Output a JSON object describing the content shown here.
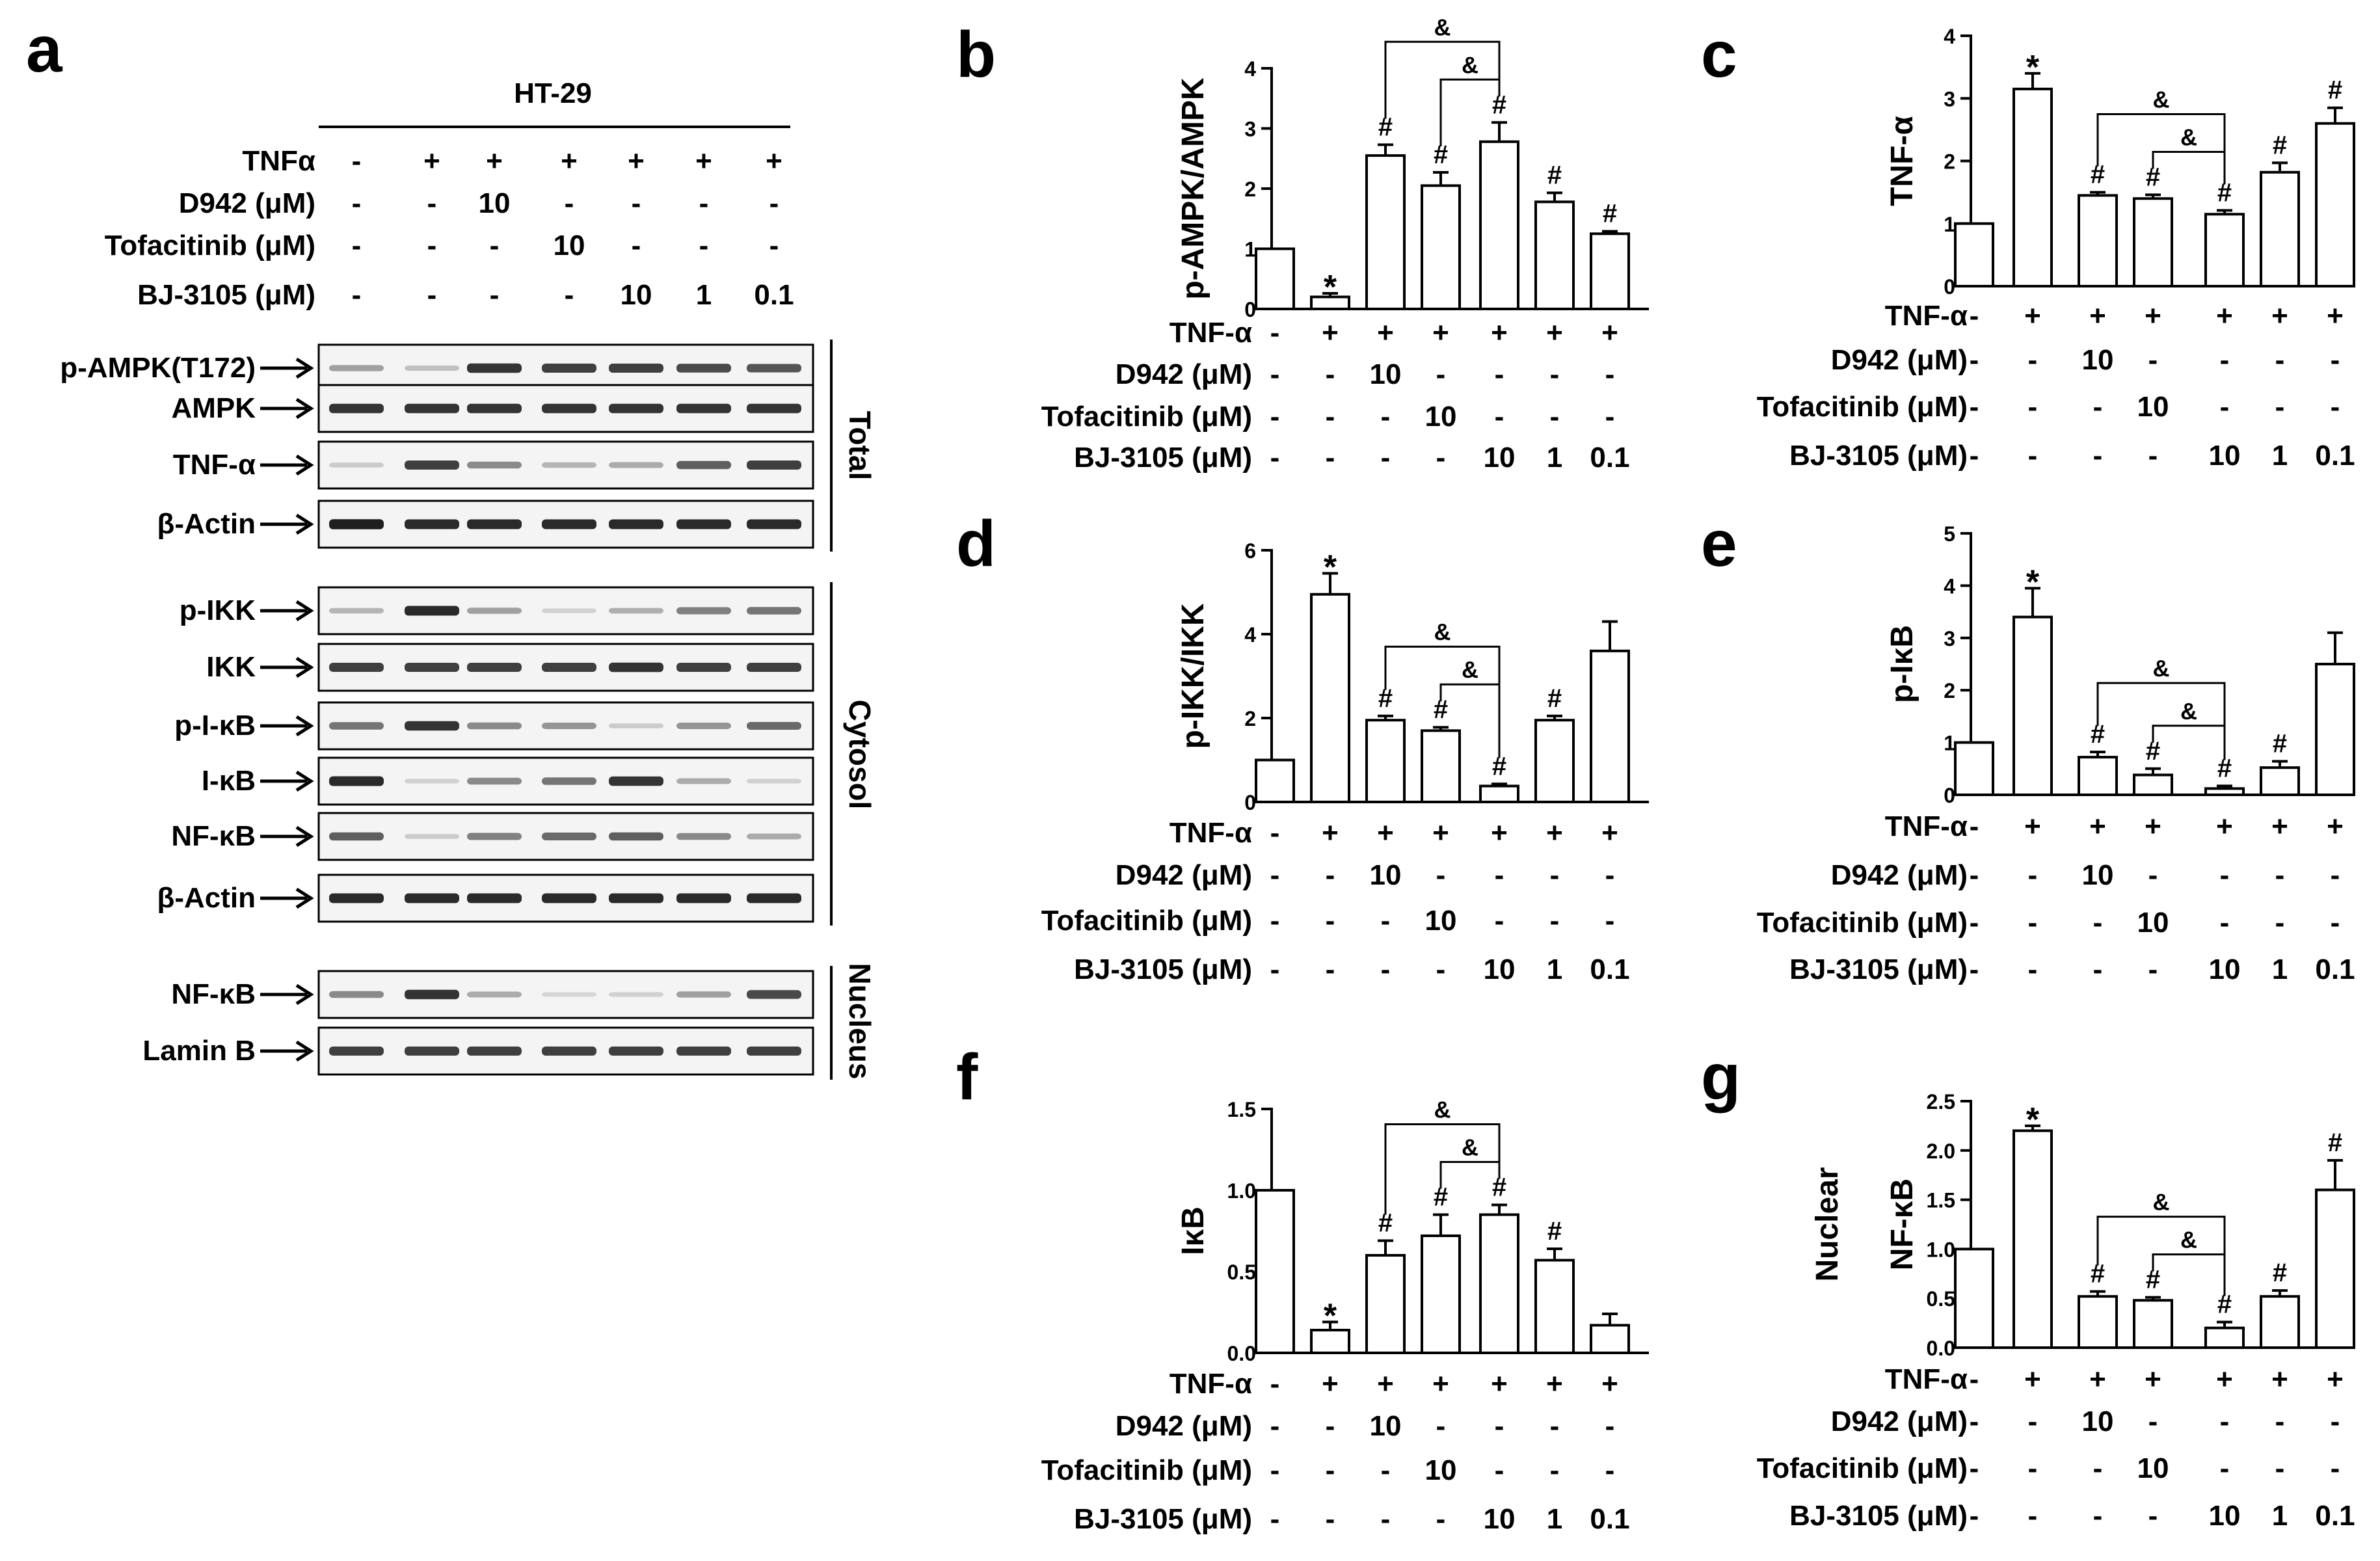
{
  "panel_a": {
    "letter": "a",
    "cell_line": "HT-29",
    "treatments": [
      {
        "label": "TNFα",
        "values": [
          "-",
          "+",
          "+",
          "+",
          "+",
          "+",
          "+"
        ]
      },
      {
        "label": "D942 (μM)",
        "values": [
          "-",
          "-",
          "10",
          "-",
          "-",
          "-",
          "-"
        ]
      },
      {
        "label": "Tofacitinib (μM)",
        "values": [
          "-",
          "-",
          "-",
          "10",
          "-",
          "-",
          "-"
        ]
      },
      {
        "label": "BJ-3105 (μM)",
        "values": [
          "-",
          "-",
          "-",
          "-",
          "10",
          "1",
          "0.1"
        ]
      }
    ],
    "sections": [
      {
        "name": "Total",
        "blots": [
          {
            "label": "p-AMPK(T172)",
            "intensity": [
              0.35,
              0.2,
              0.85,
              0.8,
              0.8,
              0.75,
              0.7
            ]
          },
          {
            "label": "AMPK",
            "intensity": [
              0.85,
              0.85,
              0.85,
              0.85,
              0.85,
              0.85,
              0.85
            ]
          },
          {
            "label": "TNF-α",
            "intensity": [
              0.15,
              0.8,
              0.45,
              0.25,
              0.3,
              0.65,
              0.8
            ]
          },
          {
            "label": "β-Actin",
            "intensity": [
              0.95,
              0.9,
              0.9,
              0.9,
              0.9,
              0.9,
              0.9
            ]
          }
        ]
      },
      {
        "name": "Cytosol",
        "blots": [
          {
            "label": "p-IKK",
            "intensity": [
              0.25,
              0.9,
              0.35,
              0.12,
              0.28,
              0.5,
              0.55
            ]
          },
          {
            "label": "IKK",
            "intensity": [
              0.8,
              0.8,
              0.8,
              0.8,
              0.85,
              0.8,
              0.8
            ]
          },
          {
            "label": "p-I-κB",
            "intensity": [
              0.55,
              0.85,
              0.45,
              0.4,
              0.15,
              0.4,
              0.6
            ]
          },
          {
            "label": "I-κB",
            "intensity": [
              0.9,
              0.12,
              0.45,
              0.55,
              0.85,
              0.3,
              0.12
            ]
          },
          {
            "label": "NF-κB",
            "intensity": [
              0.65,
              0.15,
              0.5,
              0.6,
              0.65,
              0.45,
              0.3
            ]
          },
          {
            "label": "β-Actin",
            "intensity": [
              0.9,
              0.9,
              0.9,
              0.9,
              0.9,
              0.9,
              0.9
            ]
          }
        ]
      },
      {
        "name": "Nucleus",
        "blots": [
          {
            "label": "NF-κB",
            "intensity": [
              0.45,
              0.85,
              0.3,
              0.1,
              0.12,
              0.35,
              0.75
            ]
          },
          {
            "label": "Lamin B",
            "intensity": [
              0.8,
              0.8,
              0.8,
              0.8,
              0.8,
              0.8,
              0.8
            ]
          }
        ]
      }
    ]
  },
  "chart_data": [
    {
      "panel": "b",
      "type": "bar",
      "ylabel": [
        "p-AMPK/AMPK"
      ],
      "ylim": [
        0,
        4
      ],
      "yticks": [
        "0",
        "1",
        "2",
        "3",
        "4"
      ],
      "values": [
        1.0,
        0.2,
        2.55,
        2.05,
        2.78,
        1.78,
        1.25
      ],
      "errors": [
        0,
        0.06,
        0.18,
        0.22,
        0.32,
        0.15,
        0.04
      ],
      "marks": [
        "",
        "*",
        "#",
        "#",
        "#",
        "#",
        "#"
      ],
      "brackets": [
        {
          "from": 2,
          "to": 4,
          "label": "&"
        },
        {
          "from": 3,
          "to": 4,
          "label": "&"
        }
      ],
      "rows": [
        {
          "label": "TNF-α",
          "values": [
            "-",
            "+",
            "+",
            "+",
            "+",
            "+",
            "+"
          ]
        },
        {
          "label": "D942 (μM)",
          "values": [
            "-",
            "-",
            "10",
            "-",
            "-",
            "-",
            "-"
          ]
        },
        {
          "label": "Tofacitinib (μM)",
          "values": [
            "-",
            "-",
            "-",
            "10",
            "-",
            "-",
            "-"
          ]
        },
        {
          "label": "BJ-3105 (μM)",
          "values": [
            "-",
            "-",
            "-",
            "-",
            "10",
            "1",
            "0.1"
          ]
        }
      ]
    },
    {
      "panel": "c",
      "type": "bar",
      "ylabel": [
        "TNF-α"
      ],
      "ylim": [
        0,
        4
      ],
      "yticks": [
        "0",
        "1",
        "2",
        "3",
        "4"
      ],
      "values": [
        1.0,
        3.15,
        1.45,
        1.4,
        1.15,
        1.82,
        2.6
      ],
      "errors": [
        0,
        0.25,
        0.05,
        0.06,
        0.06,
        0.15,
        0.25
      ],
      "marks": [
        "",
        "*",
        "#",
        "#",
        "#",
        "#",
        "#"
      ],
      "brackets": [
        {
          "from": 2,
          "to": 4,
          "label": "&"
        },
        {
          "from": 3,
          "to": 4,
          "label": "&"
        }
      ],
      "rows": [
        {
          "label": "TNF-α",
          "values": [
            "-",
            "+",
            "+",
            "+",
            "+",
            "+",
            "+"
          ]
        },
        {
          "label": "D942 (μM)",
          "values": [
            "-",
            "-",
            "10",
            "-",
            "-",
            "-",
            "-"
          ]
        },
        {
          "label": "Tofacitinib (μM)",
          "values": [
            "-",
            "-",
            "-",
            "10",
            "-",
            "-",
            "-"
          ]
        },
        {
          "label": "BJ-3105 (μM)",
          "values": [
            "-",
            "-",
            "-",
            "-",
            "10",
            "1",
            "0.1"
          ]
        }
      ]
    },
    {
      "panel": "d",
      "type": "bar",
      "ylabel": [
        "p-IKK/IKK"
      ],
      "ylim": [
        0,
        6
      ],
      "yticks": [
        "0",
        "2",
        "4",
        "6"
      ],
      "values": [
        1.0,
        4.95,
        1.95,
        1.7,
        0.38,
        1.95,
        3.6
      ],
      "errors": [
        0,
        0.5,
        0.1,
        0.08,
        0.05,
        0.1,
        0.7
      ],
      "marks": [
        "",
        "*",
        "#",
        "#",
        "#",
        "#",
        ""
      ],
      "brackets": [
        {
          "from": 2,
          "to": 4,
          "label": "&"
        },
        {
          "from": 3,
          "to": 4,
          "label": "&"
        }
      ],
      "rows": [
        {
          "label": "TNF-α",
          "values": [
            "-",
            "+",
            "+",
            "+",
            "+",
            "+",
            "+"
          ]
        },
        {
          "label": "D942 (μM)",
          "values": [
            "-",
            "-",
            "10",
            "-",
            "-",
            "-",
            "-"
          ]
        },
        {
          "label": "Tofacitinib (μM)",
          "values": [
            "-",
            "-",
            "-",
            "10",
            "-",
            "-",
            "-"
          ]
        },
        {
          "label": "BJ-3105 (μM)",
          "values": [
            "-",
            "-",
            "-",
            "-",
            "10",
            "1",
            "0.1"
          ]
        }
      ]
    },
    {
      "panel": "e",
      "type": "bar",
      "ylabel": [
        "p-IκB"
      ],
      "ylim": [
        0,
        5
      ],
      "yticks": [
        "0",
        "1",
        "2",
        "3",
        "4",
        "5"
      ],
      "values": [
        1.0,
        3.4,
        0.72,
        0.38,
        0.12,
        0.52,
        2.5
      ],
      "errors": [
        0,
        0.55,
        0.1,
        0.12,
        0.05,
        0.12,
        0.6
      ],
      "marks": [
        "",
        "*",
        "#",
        "#",
        "#",
        "#",
        ""
      ],
      "brackets": [
        {
          "from": 2,
          "to": 4,
          "label": "&"
        },
        {
          "from": 3,
          "to": 4,
          "label": "&"
        }
      ],
      "rows": [
        {
          "label": "TNF-α",
          "values": [
            "-",
            "+",
            "+",
            "+",
            "+",
            "+",
            "+"
          ]
        },
        {
          "label": "D942 (μM)",
          "values": [
            "-",
            "-",
            "10",
            "-",
            "-",
            "-",
            "-"
          ]
        },
        {
          "label": "Tofacitinib (μM)",
          "values": [
            "-",
            "-",
            "-",
            "10",
            "-",
            "-",
            "-"
          ]
        },
        {
          "label": "BJ-3105 (μM)",
          "values": [
            "-",
            "-",
            "-",
            "-",
            "10",
            "1",
            "0.1"
          ]
        }
      ]
    },
    {
      "panel": "f",
      "type": "bar",
      "ylabel": [
        "IκB"
      ],
      "ylim": [
        0,
        1.5
      ],
      "yticks": [
        "0.0",
        "0.5",
        "1.0",
        "1.5"
      ],
      "values": [
        1.0,
        0.14,
        0.6,
        0.72,
        0.85,
        0.57,
        0.17
      ],
      "errors": [
        0,
        0.05,
        0.09,
        0.13,
        0.06,
        0.07,
        0.07
      ],
      "marks": [
        "",
        "*",
        "#",
        "#",
        "#",
        "#",
        ""
      ],
      "brackets": [
        {
          "from": 2,
          "to": 4,
          "label": "&"
        },
        {
          "from": 3,
          "to": 4,
          "label": "&"
        }
      ],
      "rows": [
        {
          "label": "TNF-α",
          "values": [
            "-",
            "+",
            "+",
            "+",
            "+",
            "+",
            "+"
          ]
        },
        {
          "label": "D942 (μM)",
          "values": [
            "-",
            "-",
            "10",
            "-",
            "-",
            "-",
            "-"
          ]
        },
        {
          "label": "Tofacitinib (μM)",
          "values": [
            "-",
            "-",
            "-",
            "10",
            "-",
            "-",
            "-"
          ]
        },
        {
          "label": "BJ-3105 (μM)",
          "values": [
            "-",
            "-",
            "-",
            "-",
            "10",
            "1",
            "0.1"
          ]
        }
      ]
    },
    {
      "panel": "g",
      "type": "bar",
      "ylabel": [
        "Nuclear",
        "NF-κB"
      ],
      "ylim": [
        0,
        2.5
      ],
      "yticks": [
        "0.0",
        "0.5",
        "1.0",
        "1.5",
        "2.0",
        "2.5"
      ],
      "values": [
        1.0,
        2.2,
        0.52,
        0.48,
        0.2,
        0.52,
        1.6
      ],
      "errors": [
        0,
        0.05,
        0.05,
        0.03,
        0.06,
        0.06,
        0.3
      ],
      "marks": [
        "",
        "*",
        "#",
        "#",
        "#",
        "#",
        "#"
      ],
      "brackets": [
        {
          "from": 2,
          "to": 4,
          "label": "&"
        },
        {
          "from": 3,
          "to": 4,
          "label": "&"
        }
      ],
      "rows": [
        {
          "label": "TNF-α",
          "values": [
            "-",
            "+",
            "+",
            "+",
            "+",
            "+",
            "+"
          ]
        },
        {
          "label": "D942 (μM)",
          "values": [
            "-",
            "-",
            "10",
            "-",
            "-",
            "-",
            "-"
          ]
        },
        {
          "label": "Tofacitinib (μM)",
          "values": [
            "-",
            "-",
            "-",
            "10",
            "-",
            "-",
            "-"
          ]
        },
        {
          "label": "BJ-3105 (μM)",
          "values": [
            "-",
            "-",
            "-",
            "-",
            "10",
            "1",
            "0.1"
          ]
        }
      ]
    }
  ]
}
